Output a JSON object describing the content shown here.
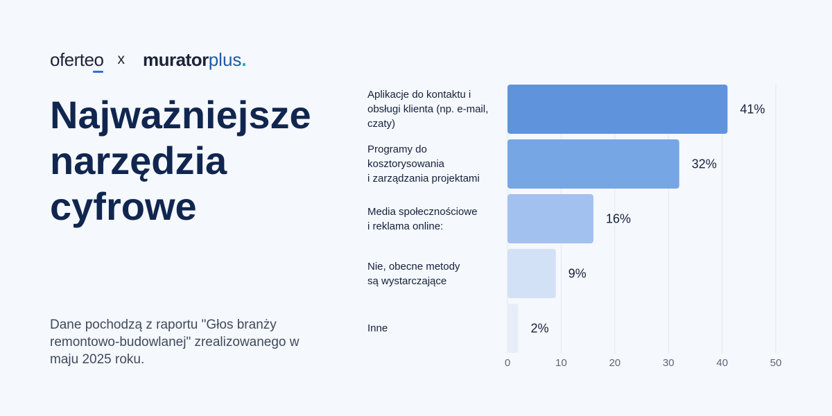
{
  "logos": {
    "oferteo": "oferteo",
    "separator": "x",
    "murator": "murator",
    "plus": "plus",
    "dot": "."
  },
  "title": "Najważniejsze narzędzia cyfrowe",
  "source_note": "Dane pochodzą z raportu \"Głos branży remontowo-budowlanej\" zrealizowanego w maju 2025 roku.",
  "colors": {
    "title": "#10264f",
    "bars": [
      "#5f94dc",
      "#77a6e5",
      "#a3c1ef",
      "#d3e1f6",
      "#e7eef9"
    ]
  },
  "chart_data": {
    "type": "bar",
    "orientation": "horizontal",
    "categories": [
      "Aplikacje do kontaktu i\nobsługi klienta (np. e-mail,\nczaty)",
      "Programy do\nkosztorysowania\ni zarządzania projektami",
      "Media społecznościowe\ni reklama online:",
      "Nie, obecne metody\nsą wystarczające",
      "Inne"
    ],
    "values": [
      41,
      32,
      16,
      9,
      2
    ],
    "value_labels": [
      "41%",
      "32%",
      "16%",
      "9%",
      "2%"
    ],
    "xlim": [
      0,
      50
    ],
    "xticks": [
      0,
      10,
      20,
      30,
      40,
      50
    ],
    "grid": true
  }
}
